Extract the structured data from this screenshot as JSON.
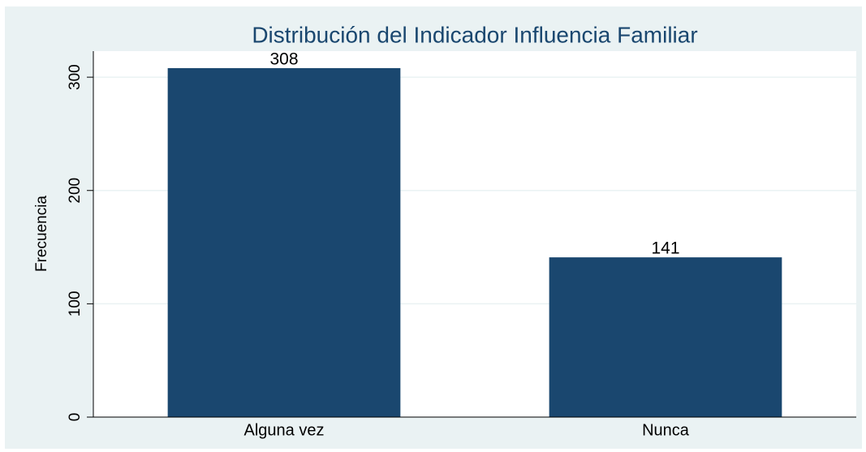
{
  "chart_data": {
    "type": "bar",
    "title": "Distribución del Indicador Influencia Familiar",
    "y_label": "Frecuencia",
    "categories": [
      "Alguna vez",
      "Nunca"
    ],
    "values": [
      308,
      141
    ],
    "color": "#1a476f",
    "ylim": [
      0,
      323
    ],
    "yticks": [
      0,
      100,
      200,
      300
    ],
    "grid": true
  }
}
